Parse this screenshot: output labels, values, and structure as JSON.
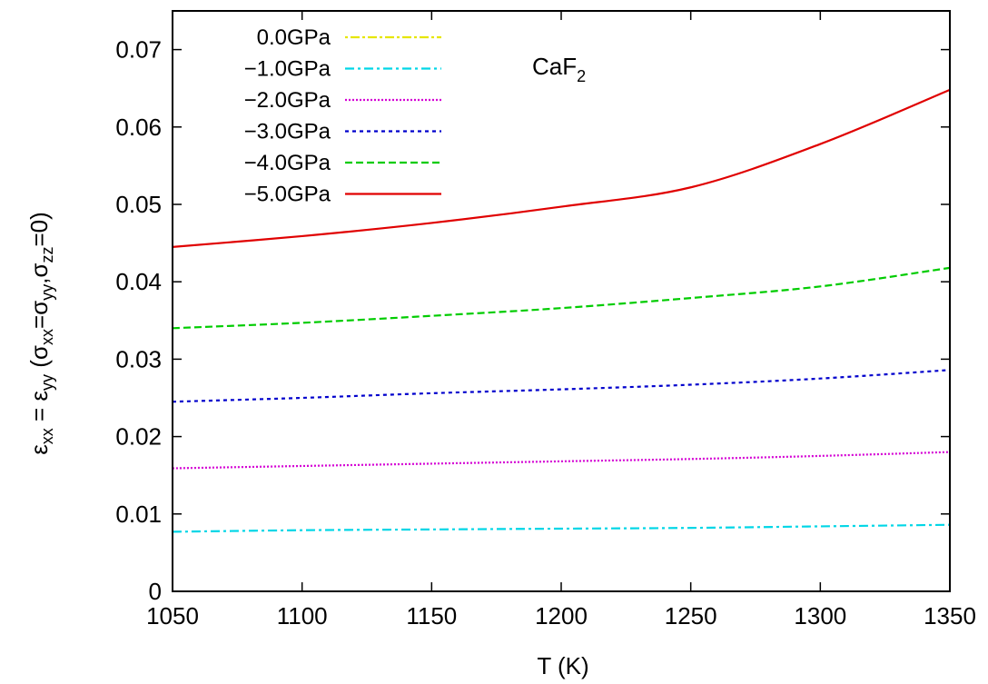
{
  "chart_data": {
    "type": "line",
    "title": "",
    "xlabel": "T (K)",
    "ylabel": "ε_xx = ε_yy (σ_xx=σ_yy,σ_zz=0)",
    "xlim": [
      1050,
      1350
    ],
    "ylim": [
      0,
      0.075
    ],
    "xticks": [
      1050,
      1100,
      1150,
      1200,
      1250,
      1300,
      1350
    ],
    "yticks": [
      0,
      0.01,
      0.02,
      0.03,
      0.04,
      0.05,
      0.06,
      0.07
    ],
    "ytick_labels": [
      "0",
      "0.01",
      "0.02",
      "0.03",
      "0.04",
      "0.05",
      "0.06",
      "0.07"
    ],
    "grid": false,
    "legend_position": "top-left",
    "annotation": {
      "text": "CaF",
      "subscript": "2"
    },
    "x": [
      1050,
      1100,
      1150,
      1200,
      1250,
      1300,
      1350
    ],
    "series": [
      {
        "name": "0.0GPa",
        "color": "#e6e600",
        "dash": "3,3,10,3",
        "values": [
          null,
          null,
          null,
          null,
          null,
          null,
          null
        ]
      },
      {
        "name": "−1.0GPa",
        "color": "#00d6e6",
        "dash": "10,4,3,4",
        "values": [
          0.0077,
          0.0079,
          0.008,
          0.0081,
          0.0082,
          0.0084,
          0.0086
        ]
      },
      {
        "name": "−2.0GPa",
        "color": "#d400d4",
        "dash": "2,2",
        "values": [
          0.0159,
          0.0162,
          0.0165,
          0.0168,
          0.0171,
          0.0175,
          0.018
        ]
      },
      {
        "name": "−3.0GPa",
        "color": "#0000cc",
        "dash": "4,4",
        "values": [
          0.0245,
          0.025,
          0.0256,
          0.0261,
          0.0267,
          0.0275,
          0.0286
        ]
      },
      {
        "name": "−4.0GPa",
        "color": "#00cc00",
        "dash": "8,4",
        "values": [
          0.034,
          0.0347,
          0.0356,
          0.0366,
          0.0379,
          0.0394,
          0.0418
        ]
      },
      {
        "name": "−5.0GPa",
        "color": "#e00000",
        "dash": "",
        "values": [
          0.0445,
          0.0459,
          0.0476,
          0.0497,
          0.0522,
          0.0578,
          0.0648
        ]
      }
    ]
  }
}
